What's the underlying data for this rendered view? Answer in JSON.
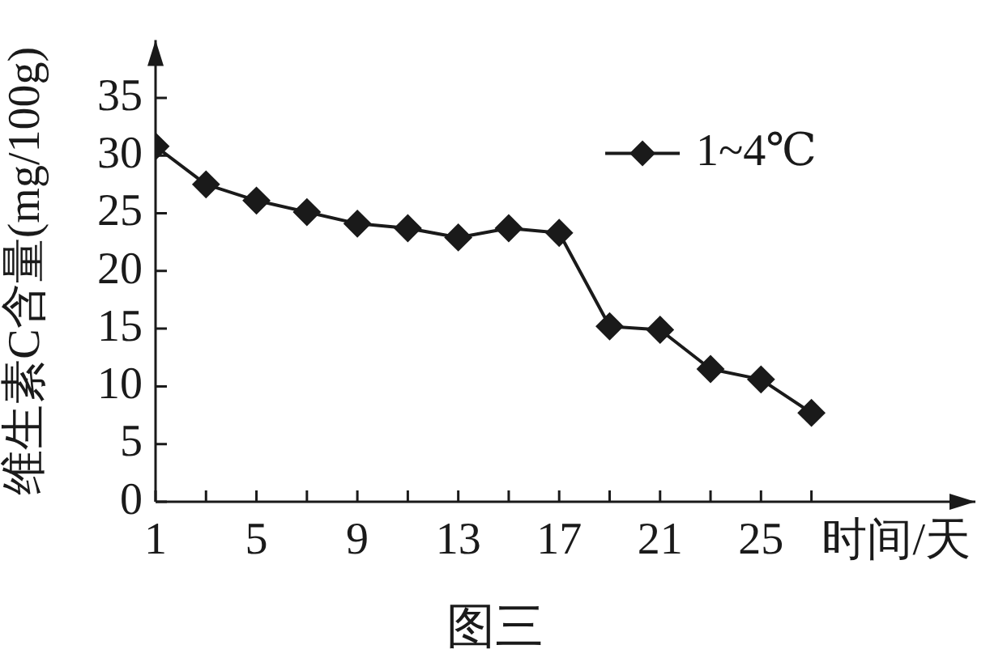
{
  "chart_data": {
    "type": "line",
    "title": "图三",
    "xlabel": "时间/天",
    "ylabel": "维生素C含量(mg/100g)",
    "x": [
      1,
      3,
      5,
      7,
      9,
      11,
      13,
      15,
      17,
      19,
      21,
      23,
      25,
      27
    ],
    "series": [
      {
        "name": "1~4℃",
        "color": "#1a1a1a",
        "values": [
          30.8,
          27.5,
          26.1,
          25.1,
          24.1,
          23.7,
          22.9,
          23.7,
          23.3,
          15.2,
          14.9,
          11.5,
          10.6,
          7.7
        ]
      }
    ],
    "xlim": [
      1,
      33.5
    ],
    "ylim": [
      0,
      40
    ],
    "xticks": [
      1,
      {
        "value": 3,
        "label": null
      },
      5,
      {
        "value": 7,
        "label": null
      },
      9,
      {
        "value": 11,
        "label": null
      },
      13,
      {
        "value": 15,
        "label": null
      },
      17,
      {
        "value": 19,
        "label": null
      },
      21,
      {
        "value": 23,
        "label": null
      },
      25,
      {
        "value": 27,
        "label": null
      }
    ],
    "yticks": [
      0,
      5,
      10,
      15,
      20,
      25,
      30,
      35
    ],
    "grid": false,
    "legend": "top right",
    "marker": "diamond",
    "line_style": "solid"
  }
}
